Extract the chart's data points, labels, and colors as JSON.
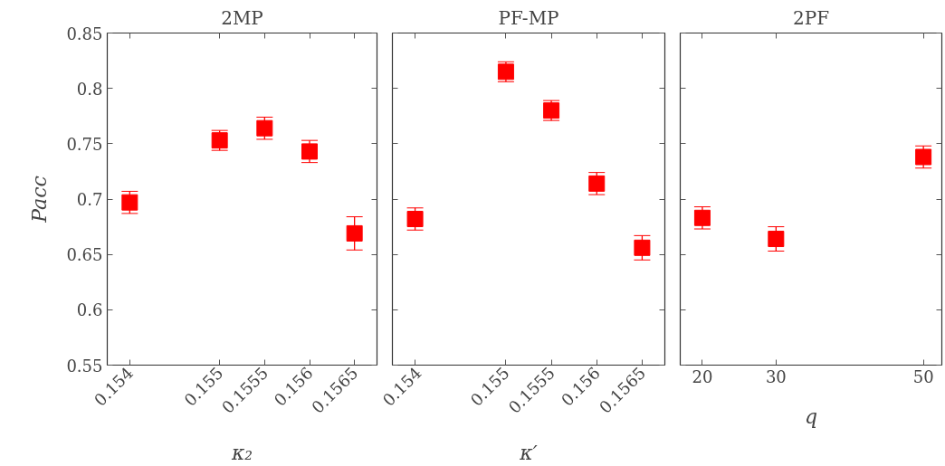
{
  "chart_data": [
    {
      "type": "scatter",
      "title": "2MP",
      "xlabel": "κ₂",
      "ylabel": "Pacc",
      "marker": "square",
      "tick_labels": true,
      "x": [
        0.154,
        0.155,
        0.1555,
        0.156,
        0.1565
      ],
      "xlim": [
        0.15375,
        0.15675
      ],
      "xticks": [
        0.154,
        0.155,
        0.1555,
        0.156,
        0.1565
      ],
      "ylim": [
        0.55,
        0.85
      ],
      "yticks": [
        0.55,
        0.6,
        0.65,
        0.7,
        0.75,
        0.8,
        0.85
      ],
      "series": [
        {
          "color": "#ff0000",
          "values": [
            0.697,
            0.753,
            0.764,
            0.743,
            0.669
          ],
          "errors": [
            0.01,
            0.009,
            0.01,
            0.01,
            0.015
          ]
        }
      ]
    },
    {
      "type": "scatter",
      "title": "PF-MP",
      "xlabel": "κ′",
      "marker": "square",
      "tick_labels": "x",
      "x": [
        0.154,
        0.155,
        0.1555,
        0.156,
        0.1565
      ],
      "xlim": [
        0.15375,
        0.15675
      ],
      "xticks": [
        0.154,
        0.155,
        0.1555,
        0.156,
        0.1565
      ],
      "ylim": [
        0.55,
        0.85
      ],
      "yticks": [
        0.55,
        0.6,
        0.65,
        0.7,
        0.75,
        0.8,
        0.85
      ],
      "series": [
        {
          "color": "#ff0000",
          "values": [
            0.682,
            0.815,
            0.78,
            0.714,
            0.656
          ],
          "errors": [
            0.01,
            0.009,
            0.009,
            0.01,
            0.011
          ]
        }
      ]
    },
    {
      "type": "scatter",
      "title": "2PF",
      "xlabel": "q",
      "marker": "square",
      "tick_labels": "x",
      "x": [
        20,
        30,
        50
      ],
      "xlim": [
        17,
        52.5
      ],
      "xticks": [
        20,
        30,
        50
      ],
      "ylim": [
        0.55,
        0.85
      ],
      "yticks": [
        0.55,
        0.6,
        0.65,
        0.7,
        0.75,
        0.8,
        0.85
      ],
      "series": [
        {
          "color": "#ff0000",
          "values": [
            0.683,
            0.664,
            0.738
          ],
          "errors": [
            0.01,
            0.011,
            0.01
          ]
        }
      ]
    }
  ]
}
